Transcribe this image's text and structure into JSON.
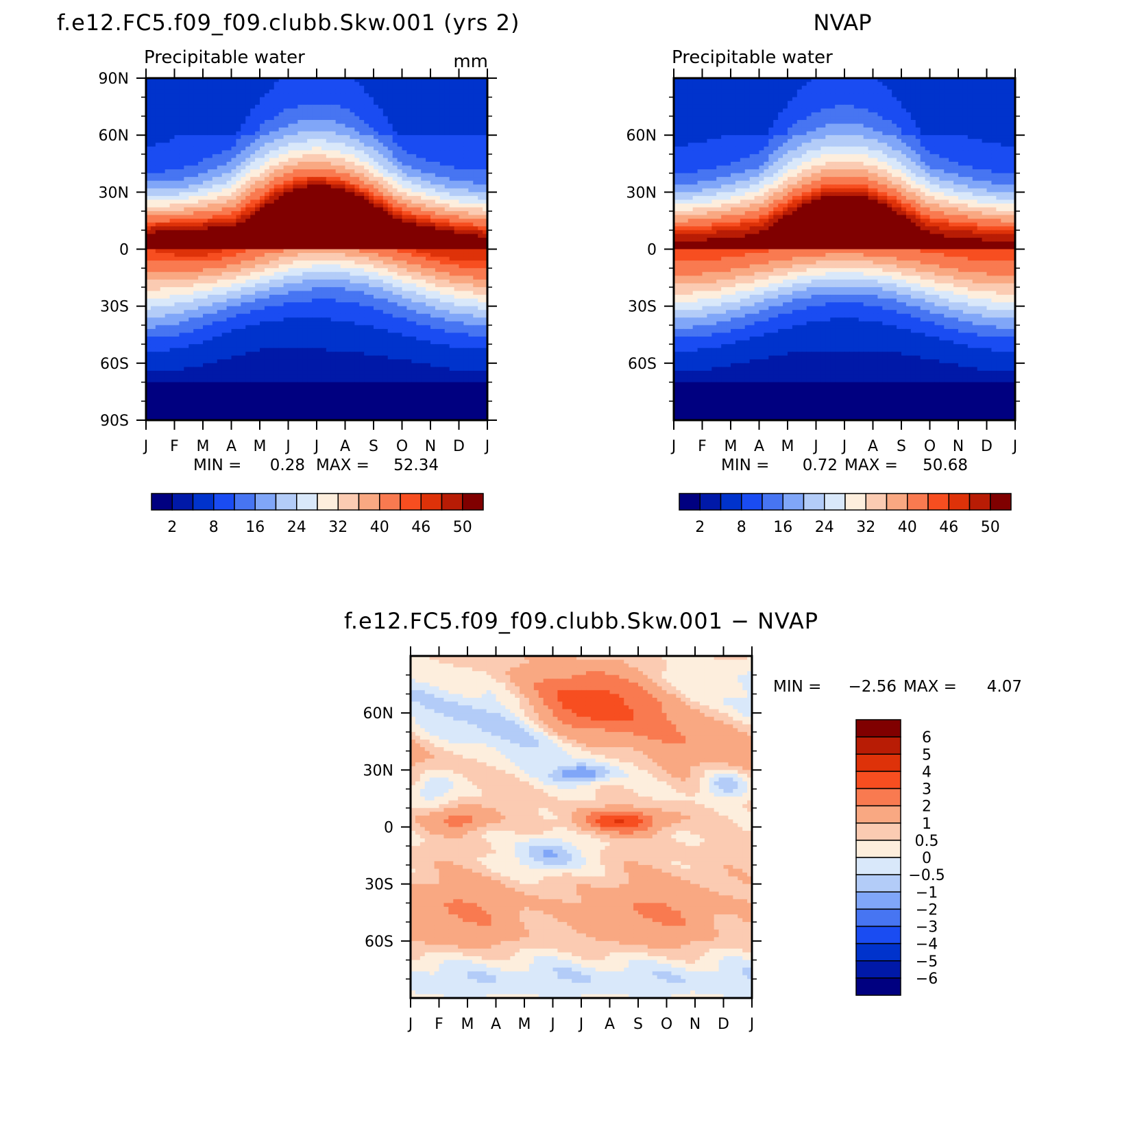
{
  "chart_data": [
    {
      "type": "heatmap",
      "title": "f.e12.FC5.f09_f09.clubb.Skw.001 (yrs 2)",
      "subtitle": "Precipitable water",
      "units": "mm",
      "x_ticks": [
        "J",
        "F",
        "M",
        "A",
        "M",
        "J",
        "J",
        "A",
        "S",
        "O",
        "N",
        "D",
        "J"
      ],
      "y_ticks": [
        "90N",
        "60N",
        "30N",
        "0",
        "30S",
        "60S",
        "90S"
      ],
      "ylim": [
        -90,
        90
      ],
      "min_label": "MIN =",
      "min_value": "0.28",
      "max_label": "MAX =",
      "max_value": "52.34",
      "min": 0.28,
      "max": 52.34,
      "eq_peak_lat": 8,
      "levels": [
        2,
        4,
        8,
        12,
        16,
        20,
        24,
        28,
        32,
        36,
        40,
        44,
        46,
        48,
        50
      ],
      "colorbar_labels": [
        "2",
        "8",
        "16",
        "24",
        "32",
        "40",
        "46",
        "50"
      ],
      "colors": [
        "#000080",
        "#0019a8",
        "#0033cc",
        "#1a4cf2",
        "#4775f2",
        "#80a6f8",
        "#b3ccf8",
        "#d9e8fa",
        "#fdeedd",
        "#fbcbb2",
        "#f9a882",
        "#f97a50",
        "#f74e20",
        "#de3209",
        "#b81c05",
        "#800000"
      ]
    },
    {
      "type": "heatmap",
      "title": "NVAP",
      "subtitle": "Precipitable water",
      "x_ticks": [
        "J",
        "F",
        "M",
        "A",
        "M",
        "J",
        "J",
        "A",
        "S",
        "O",
        "N",
        "D",
        "J"
      ],
      "y_ticks": [
        "60N",
        "30N",
        "0",
        "30S",
        "60S"
      ],
      "ylim": [
        -90,
        90
      ],
      "min_label": "MIN =",
      "min_value": "0.72",
      "max_label": "MAX =",
      "max_value": "50.68",
      "min": 0.72,
      "max": 50.68,
      "eq_peak_lat": 6,
      "levels": [
        2,
        4,
        8,
        12,
        16,
        20,
        24,
        28,
        32,
        36,
        40,
        44,
        46,
        48,
        50
      ],
      "colorbar_labels": [
        "2",
        "8",
        "16",
        "24",
        "32",
        "40",
        "46",
        "50"
      ],
      "colors": [
        "#000080",
        "#0019a8",
        "#0033cc",
        "#1a4cf2",
        "#4775f2",
        "#80a6f8",
        "#b3ccf8",
        "#d9e8fa",
        "#fdeedd",
        "#fbcbb2",
        "#f9a882",
        "#f97a50",
        "#f74e20",
        "#de3209",
        "#b81c05",
        "#800000"
      ]
    },
    {
      "type": "heatmap",
      "title": "f.e12.FC5.f09_f09.clubb.Skw.001 − NVAP",
      "x_ticks": [
        "J",
        "F",
        "M",
        "A",
        "M",
        "J",
        "J",
        "A",
        "S",
        "O",
        "N",
        "D",
        "J"
      ],
      "y_ticks": [
        "60N",
        "30N",
        "0",
        "30S",
        "60S"
      ],
      "ylim": [
        -90,
        90
      ],
      "min_label": "MIN =",
      "min_value": "−2.56",
      "max_label": "MAX =",
      "max_value": "4.07",
      "min": -2.56,
      "max": 4.07,
      "levels": [
        -6,
        -5,
        -4,
        -3,
        -2,
        -1,
        -0.5,
        0,
        0.5,
        1,
        2,
        3,
        4,
        5,
        6
      ],
      "colorbar_labels": [
        "6",
        "5",
        "4",
        "3",
        "2",
        "1",
        "0.5",
        "0",
        "−0.5",
        "−1",
        "−2",
        "−3",
        "−4",
        "−5",
        "−6"
      ],
      "colors": [
        "#000080",
        "#0019a8",
        "#0033cc",
        "#1a4cf2",
        "#4775f2",
        "#80a6f8",
        "#b3ccf8",
        "#d9e8fa",
        "#fdeedd",
        "#fbcbb2",
        "#f9a882",
        "#f97a50",
        "#f74e20",
        "#de3209",
        "#b81c05",
        "#800000"
      ]
    }
  ]
}
